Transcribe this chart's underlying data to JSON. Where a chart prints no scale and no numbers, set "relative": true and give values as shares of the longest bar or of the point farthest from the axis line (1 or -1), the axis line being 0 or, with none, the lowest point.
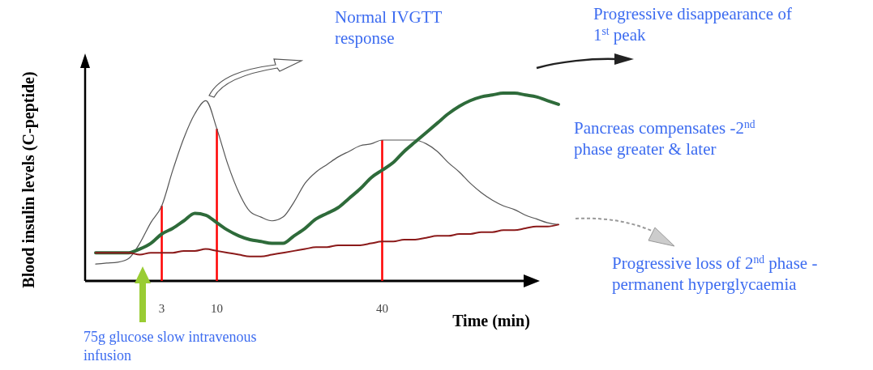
{
  "chart_data": {
    "type": "line",
    "relative": true,
    "xlabel": "Time (min)",
    "ylabel": "Blood insulin levels (C-peptide)",
    "categories": [
      null,
      null,
      null,
      null,
      null,
      null,
      "3",
      null,
      null,
      null,
      null,
      "10",
      null,
      null,
      null,
      null,
      null,
      null,
      null,
      null,
      null,
      null,
      null,
      null,
      null,
      null,
      "40",
      null,
      null,
      null,
      null,
      null,
      null,
      null,
      null,
      null,
      null,
      null,
      null,
      null,
      null,
      null,
      null
    ],
    "series": [
      {
        "color": "#555555",
        "values": [
          0.09,
          0.095,
          0.1,
          0.12,
          0.2,
          0.31,
          0.4,
          0.59,
          0.76,
          0.89,
          0.96,
          0.81,
          0.62,
          0.47,
          0.37,
          0.34,
          0.32,
          0.34,
          0.42,
          0.52,
          0.58,
          0.62,
          0.66,
          0.69,
          0.72,
          0.73,
          0.75,
          0.75,
          0.75,
          0.75,
          0.73,
          0.69,
          0.63,
          0.58,
          0.52,
          0.47,
          0.43,
          0.4,
          0.38,
          0.35,
          0.33,
          0.31,
          0.3
        ]
      },
      {
        "color": "#2e6b3a",
        "values": [
          0.15,
          0.15,
          0.15,
          0.15,
          0.17,
          0.2,
          0.25,
          0.28,
          0.32,
          0.36,
          0.35,
          0.31,
          0.27,
          0.24,
          0.22,
          0.21,
          0.2,
          0.2,
          0.24,
          0.28,
          0.33,
          0.36,
          0.39,
          0.44,
          0.49,
          0.55,
          0.59,
          0.63,
          0.69,
          0.74,
          0.79,
          0.84,
          0.89,
          0.93,
          0.96,
          0.98,
          0.99,
          1,
          1,
          0.99,
          0.98,
          0.96,
          0.94
        ]
      },
      {
        "color": "#8b1a1a",
        "values": [
          0.15,
          0.15,
          0.15,
          0.15,
          0.14,
          0.15,
          0.15,
          0.15,
          0.16,
          0.16,
          0.17,
          0.16,
          0.15,
          0.14,
          0.13,
          0.13,
          0.14,
          0.15,
          0.16,
          0.17,
          0.18,
          0.18,
          0.19,
          0.19,
          0.19,
          0.2,
          0.21,
          0.21,
          0.22,
          0.22,
          0.23,
          0.24,
          0.24,
          0.25,
          0.25,
          0.26,
          0.26,
          0.27,
          0.27,
          0.28,
          0.29,
          0.29,
          0.3
        ]
      }
    ],
    "ref_lines": [
      {
        "axis": "x",
        "value": "3",
        "color": "#ff0000"
      },
      {
        "axis": "x",
        "value": "10",
        "color": "#ff0000"
      },
      {
        "axis": "x",
        "value": "40",
        "color": "#ff0000"
      }
    ],
    "annotations": [
      "Normal IVGTT response",
      "Progressive disappearance of 1$^{st}$ peak",
      "Pancreas compensates -2$^{nd}$ phase greater & later",
      "Progressive loss of 2$^{nd}$ phase - permanent hyperglycaemia",
      "75g glucose slow intravenous infusion"
    ]
  }
}
